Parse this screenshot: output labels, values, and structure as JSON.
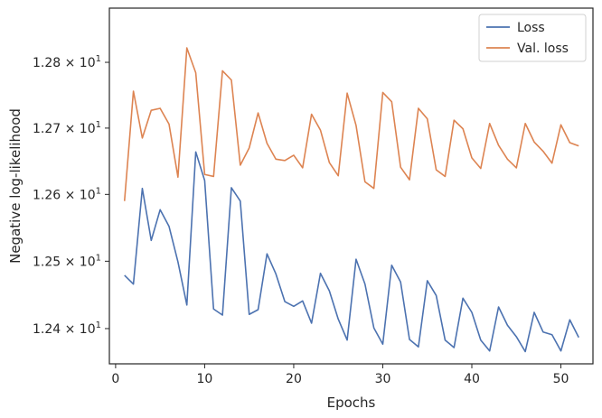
{
  "chart_data": {
    "type": "line",
    "xlabel": "Epochs",
    "ylabel": "Negative log-likelihood",
    "xlim": [
      -0.7,
      53.6
    ],
    "ylim": [
      12.348,
      12.883
    ],
    "y_scale": "log",
    "grid": false,
    "legend_position": "top-right",
    "x_ticks": [
      0,
      10,
      20,
      30,
      40,
      50
    ],
    "x_tick_labels": [
      "0",
      "10",
      "20",
      "30",
      "40",
      "50"
    ],
    "y_ticks": [
      12.4,
      12.5,
      12.6,
      12.7,
      12.8
    ],
    "y_tick_labels": [
      {
        "mant": "1.24",
        "exp": "1"
      },
      {
        "mant": "1.25",
        "exp": "1"
      },
      {
        "mant": "1.26",
        "exp": "1"
      },
      {
        "mant": "1.27",
        "exp": "1"
      },
      {
        "mant": "1.28",
        "exp": "1"
      }
    ],
    "x": [
      1,
      2,
      3,
      4,
      5,
      6,
      7,
      8,
      9,
      10,
      11,
      12,
      13,
      14,
      15,
      16,
      17,
      18,
      19,
      20,
      21,
      22,
      23,
      24,
      25,
      26,
      27,
      28,
      29,
      30,
      31,
      32,
      33,
      34,
      35,
      36,
      37,
      38,
      39,
      40,
      41,
      42,
      43,
      44,
      45,
      46,
      47,
      48,
      49,
      50,
      51,
      52
    ],
    "series": [
      {
        "name": "Loss",
        "color": "#4c72b0",
        "values": [
          12.479,
          12.466,
          12.609,
          12.531,
          12.577,
          12.552,
          12.499,
          12.435,
          12.664,
          12.621,
          12.429,
          12.42,
          12.61,
          12.59,
          12.421,
          12.428,
          12.511,
          12.481,
          12.44,
          12.433,
          12.441,
          12.408,
          12.482,
          12.456,
          12.414,
          12.383,
          12.503,
          12.466,
          12.401,
          12.377,
          12.494,
          12.469,
          12.384,
          12.373,
          12.471,
          12.449,
          12.383,
          12.372,
          12.445,
          12.424,
          12.383,
          12.367,
          12.432,
          12.405,
          12.388,
          12.366,
          12.424,
          12.395,
          12.391,
          12.367,
          12.413,
          12.387
        ]
      },
      {
        "name": "Val. loss",
        "color": "#dd8452",
        "values": [
          12.59,
          12.756,
          12.685,
          12.727,
          12.73,
          12.706,
          12.626,
          12.822,
          12.784,
          12.63,
          12.627,
          12.787,
          12.773,
          12.644,
          12.67,
          12.723,
          12.677,
          12.653,
          12.651,
          12.659,
          12.64,
          12.721,
          12.697,
          12.648,
          12.628,
          12.753,
          12.704,
          12.619,
          12.609,
          12.754,
          12.74,
          12.641,
          12.622,
          12.73,
          12.714,
          12.637,
          12.627,
          12.712,
          12.699,
          12.655,
          12.639,
          12.707,
          12.674,
          12.653,
          12.64,
          12.707,
          12.679,
          12.665,
          12.647,
          12.705,
          12.678,
          12.673
        ]
      }
    ]
  }
}
